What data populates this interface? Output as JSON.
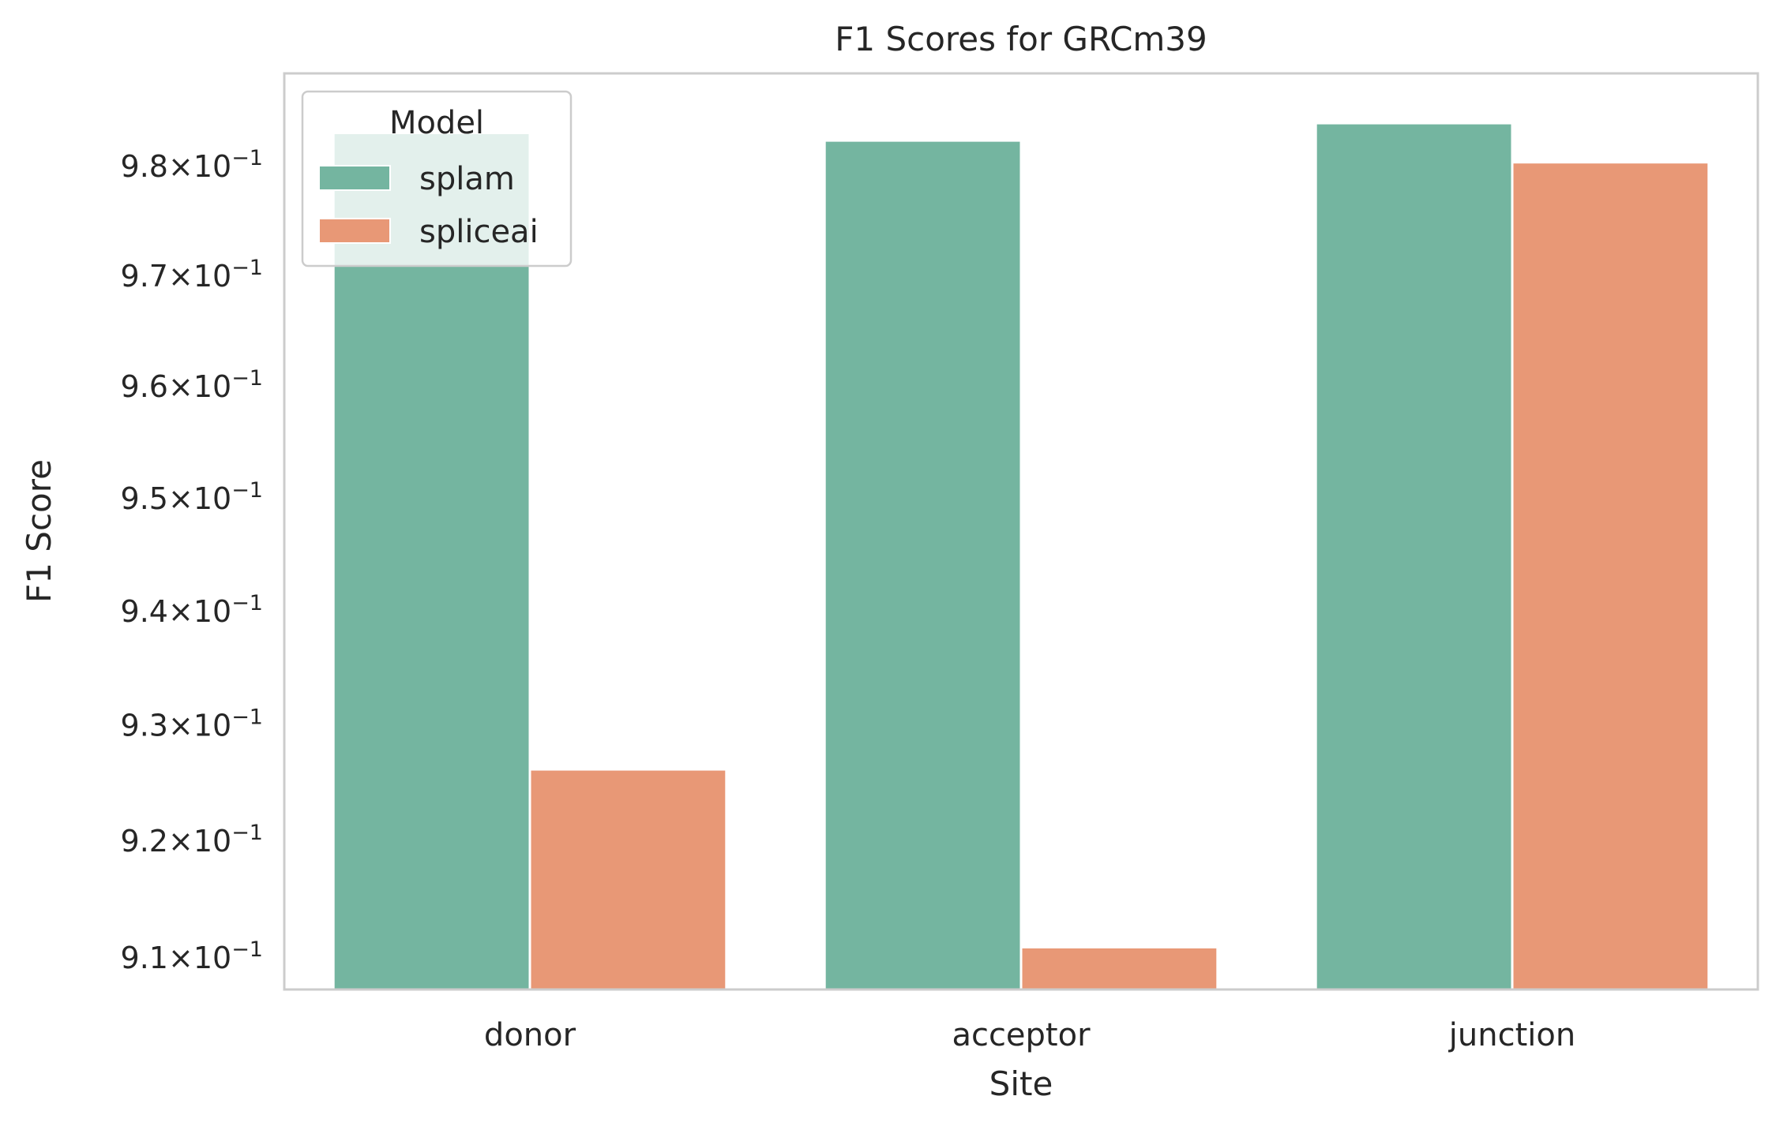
{
  "chart_data": {
    "type": "bar",
    "title": "F1 Scores for GRCm39",
    "xlabel": "Site",
    "ylabel": "F1 Score",
    "categories": [
      "donor",
      "acceptor",
      "junction"
    ],
    "series": [
      {
        "name": "splam",
        "color": "#74b5a0",
        "values": [
          0.9831,
          0.9824,
          0.984
        ]
      },
      {
        "name": "spliceai",
        "color": "#e89876",
        "values": [
          0.9262,
          0.9109,
          0.9804
        ]
      }
    ],
    "y_scale": "log",
    "ylim": [
      0.9073,
      0.9886
    ],
    "y_ticks": [
      {
        "value": 0.91,
        "mantissa": "9.1"
      },
      {
        "value": 0.92,
        "mantissa": "9.2"
      },
      {
        "value": 0.93,
        "mantissa": "9.3"
      },
      {
        "value": 0.94,
        "mantissa": "9.4"
      },
      {
        "value": 0.95,
        "mantissa": "9.5"
      },
      {
        "value": 0.96,
        "mantissa": "9.6"
      },
      {
        "value": 0.97,
        "mantissa": "9.7"
      },
      {
        "value": 0.98,
        "mantissa": "9.8"
      }
    ],
    "y_tick_exponent": "−1",
    "legend": {
      "title": "Model",
      "position": "top-left"
    },
    "grid": false
  }
}
